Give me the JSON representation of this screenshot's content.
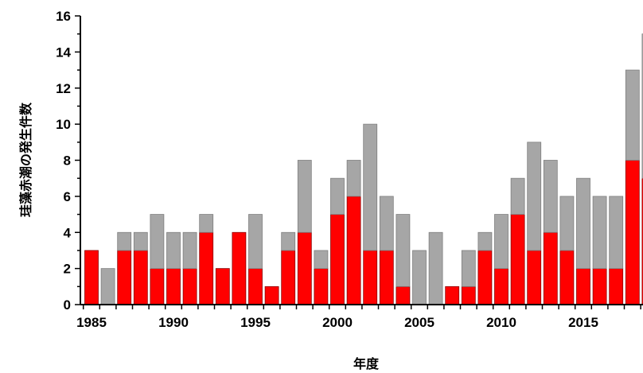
{
  "chart_data": {
    "type": "bar",
    "stacked": true,
    "xlabel": "年度",
    "ylabel": "珪藻赤潮の発生件数",
    "ylim": [
      0,
      16
    ],
    "yticks": [
      "0",
      "2",
      "4",
      "6",
      "8",
      "10",
      "12",
      "14",
      "16"
    ],
    "xticks": [
      "1985",
      "1990",
      "1995",
      "2000",
      "2005",
      "2010",
      "2015"
    ],
    "grid": false,
    "categories": [
      1985,
      1986,
      1987,
      1988,
      1989,
      1990,
      1991,
      1992,
      1993,
      1994,
      1995,
      1996,
      1997,
      1998,
      1999,
      2000,
      2001,
      2002,
      2003,
      2004,
      2005,
      2006,
      2007,
      2008,
      2009,
      2010,
      2011,
      2012,
      2013,
      2014,
      2015,
      2016,
      2017,
      2018,
      2019
    ],
    "series": [
      {
        "color": "#ff0000",
        "values": [
          3,
          0,
          3,
          3,
          2,
          2,
          2,
          4,
          2,
          4,
          2,
          1,
          3,
          4,
          2,
          5,
          6,
          3,
          3,
          1,
          0,
          0,
          1,
          1,
          3,
          2,
          5,
          3,
          4,
          3,
          2,
          2,
          2,
          8,
          7
        ]
      },
      {
        "color": "#a6a6a6",
        "values": [
          0,
          2,
          1,
          1,
          3,
          2,
          2,
          1,
          0,
          0,
          3,
          0,
          1,
          4,
          1,
          2,
          2,
          7,
          3,
          4,
          3,
          4,
          0,
          2,
          1,
          3,
          2,
          6,
          4,
          3,
          5,
          4,
          4,
          5,
          8
        ]
      }
    ]
  }
}
